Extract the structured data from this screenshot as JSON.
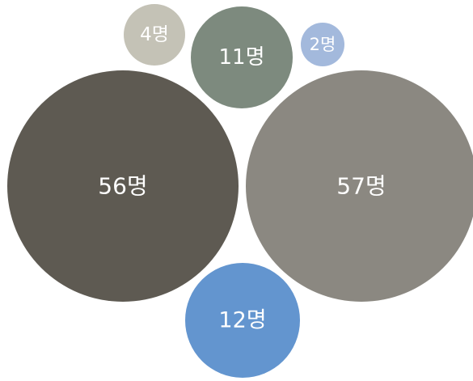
{
  "chart_data": {
    "type": "bubble",
    "unit": "명",
    "points": [
      {
        "value": 4,
        "label": "4명",
        "color": "#c4c2b6"
      },
      {
        "value": 11,
        "label": "11명",
        "color": "#7d8a7e"
      },
      {
        "value": 2,
        "label": "2명",
        "color": "#a3b9dc"
      },
      {
        "value": 56,
        "label": "56명",
        "color": "#5e5a52"
      },
      {
        "value": 57,
        "label": "57명",
        "color": "#8b8881"
      },
      {
        "value": 12,
        "label": "12명",
        "color": "#6395cf"
      }
    ]
  }
}
